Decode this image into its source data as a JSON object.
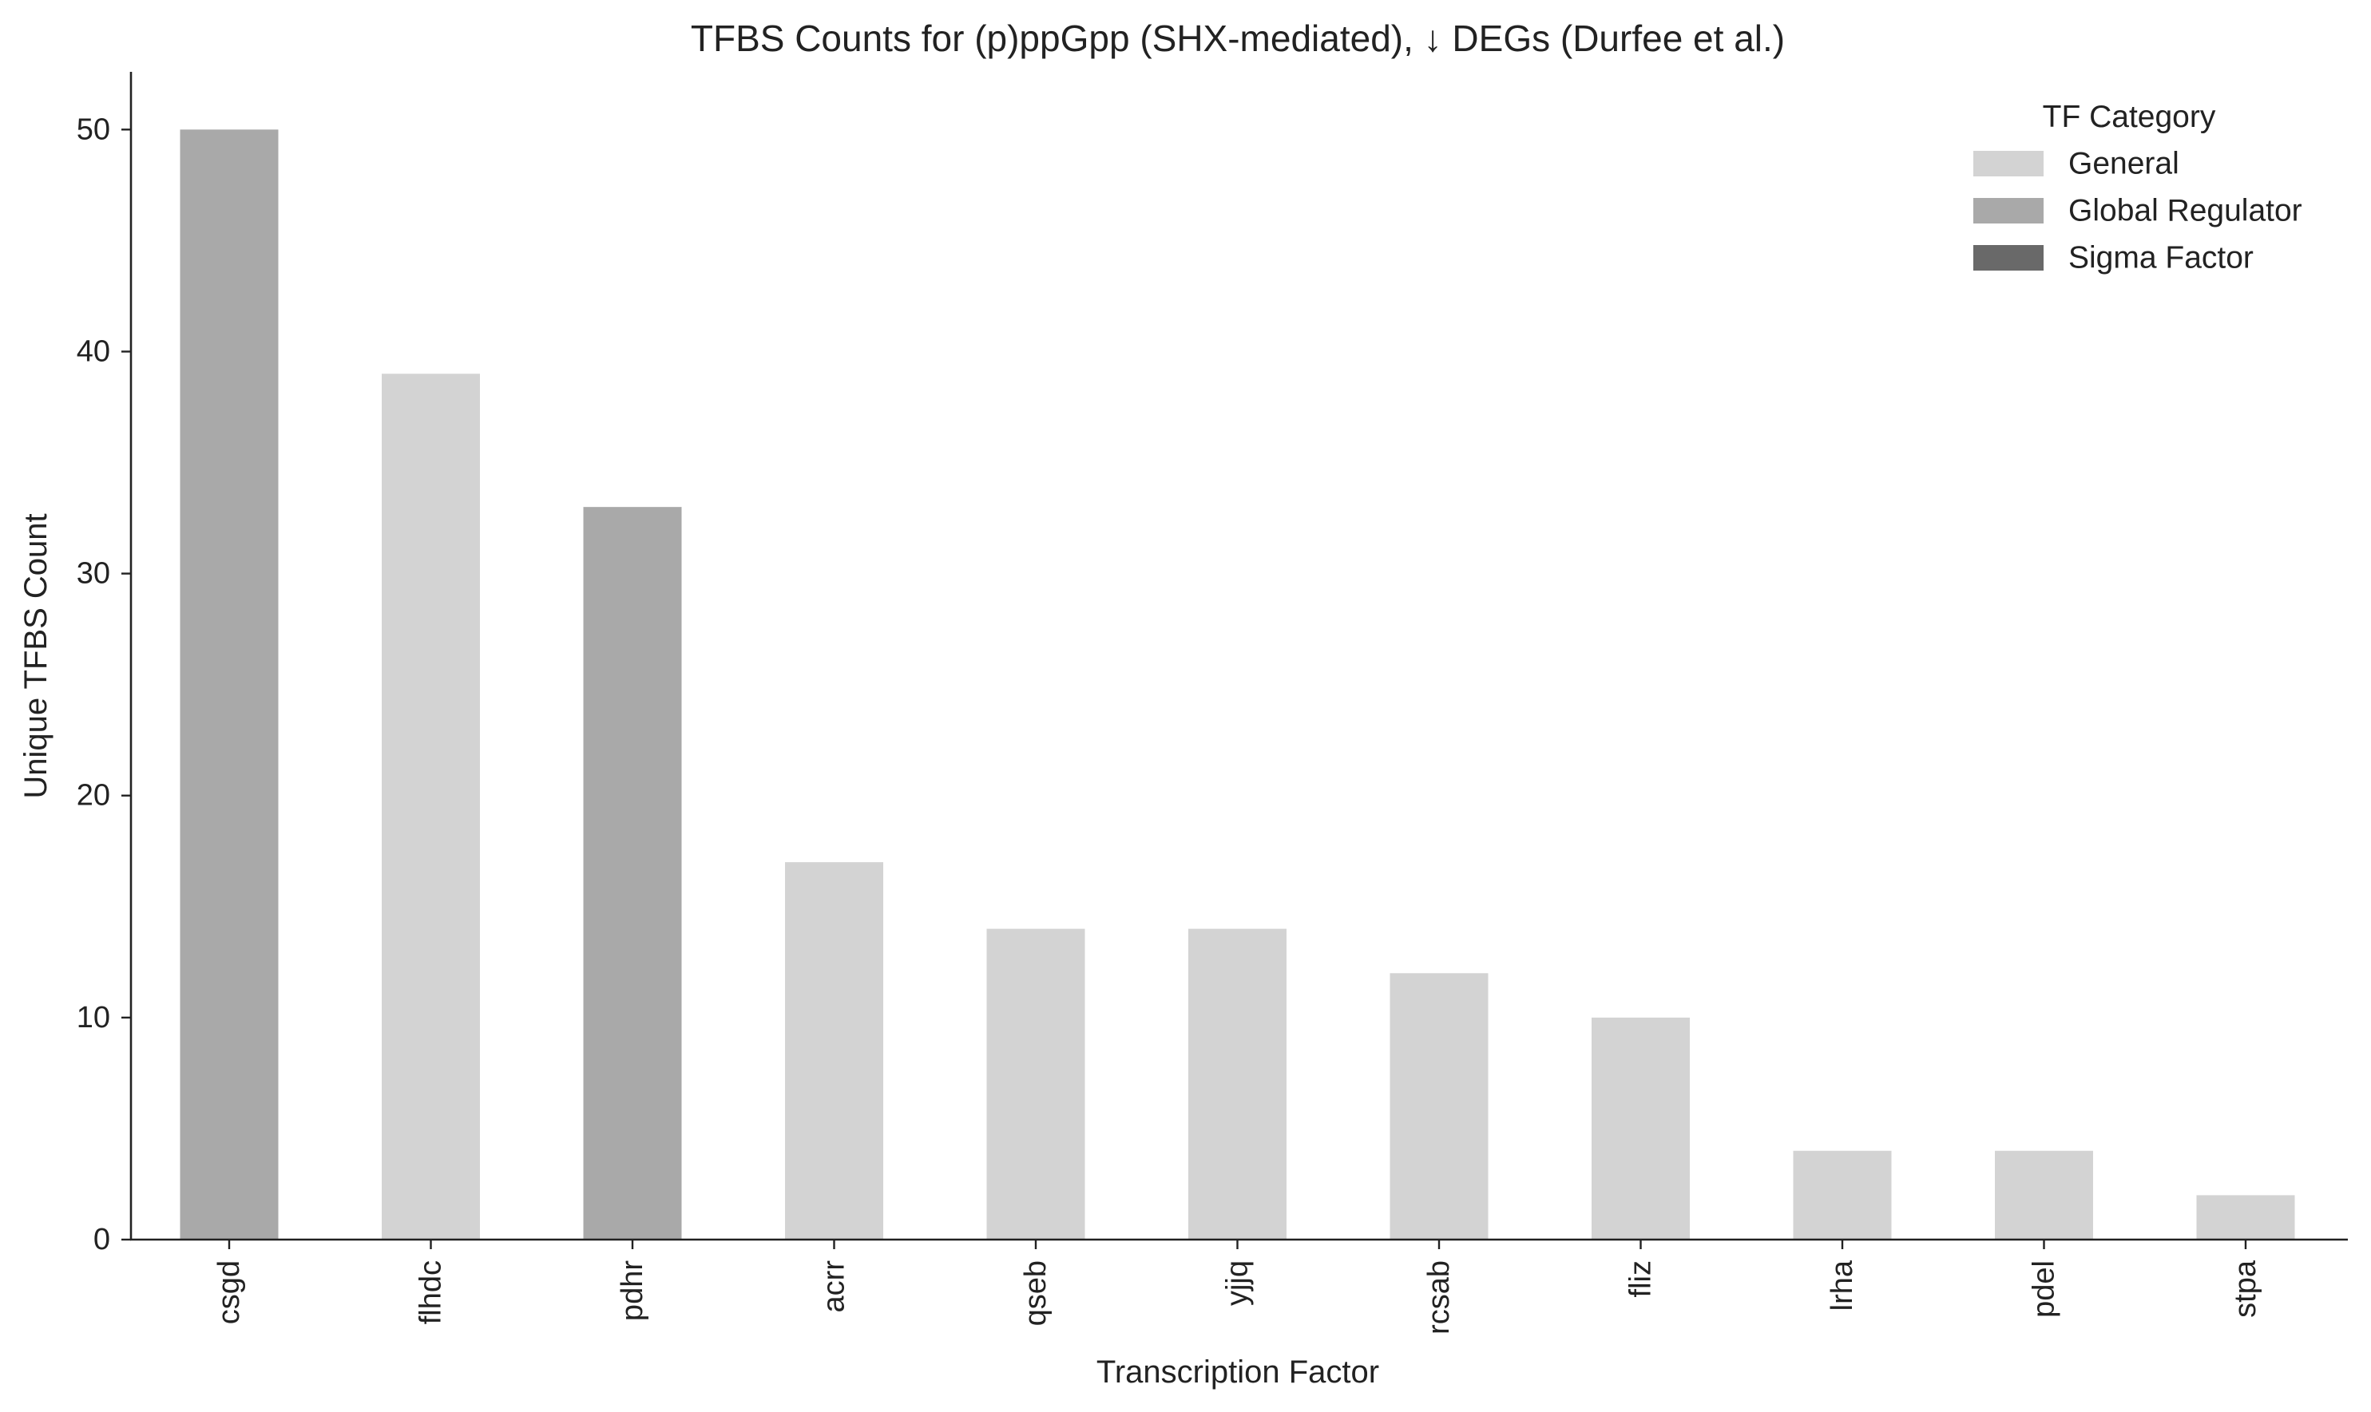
{
  "chart_data": {
    "type": "bar",
    "title": "TFBS Counts for (p)ppGpp (SHX-mediated), ↓ DEGs (Durfee et al.)",
    "xlabel": "Transcription Factor",
    "ylabel": "Unique TFBS Count",
    "ylim": [
      0,
      52.6
    ],
    "yticks": [
      0,
      10,
      20,
      30,
      40,
      50
    ],
    "categories": [
      "csgd",
      "flhdc",
      "pdhr",
      "acrr",
      "qseb",
      "yjjq",
      "rcsab",
      "fliz",
      "lrha",
      "pdel",
      "stpa"
    ],
    "values": [
      50,
      39,
      33,
      17,
      14,
      14,
      12,
      10,
      4,
      4,
      2
    ],
    "bar_category": [
      "Global Regulator",
      "General",
      "Global Regulator",
      "General",
      "General",
      "General",
      "General",
      "General",
      "General",
      "General",
      "General"
    ],
    "legend": {
      "title": "TF Category",
      "position": "top-right",
      "entries": [
        {
          "label": "General",
          "color": "#d3d3d3"
        },
        {
          "label": "Global Regulator",
          "color": "#a9a9a9"
        },
        {
          "label": "Sigma Factor",
          "color": "#696969"
        }
      ]
    },
    "grid": false
  }
}
